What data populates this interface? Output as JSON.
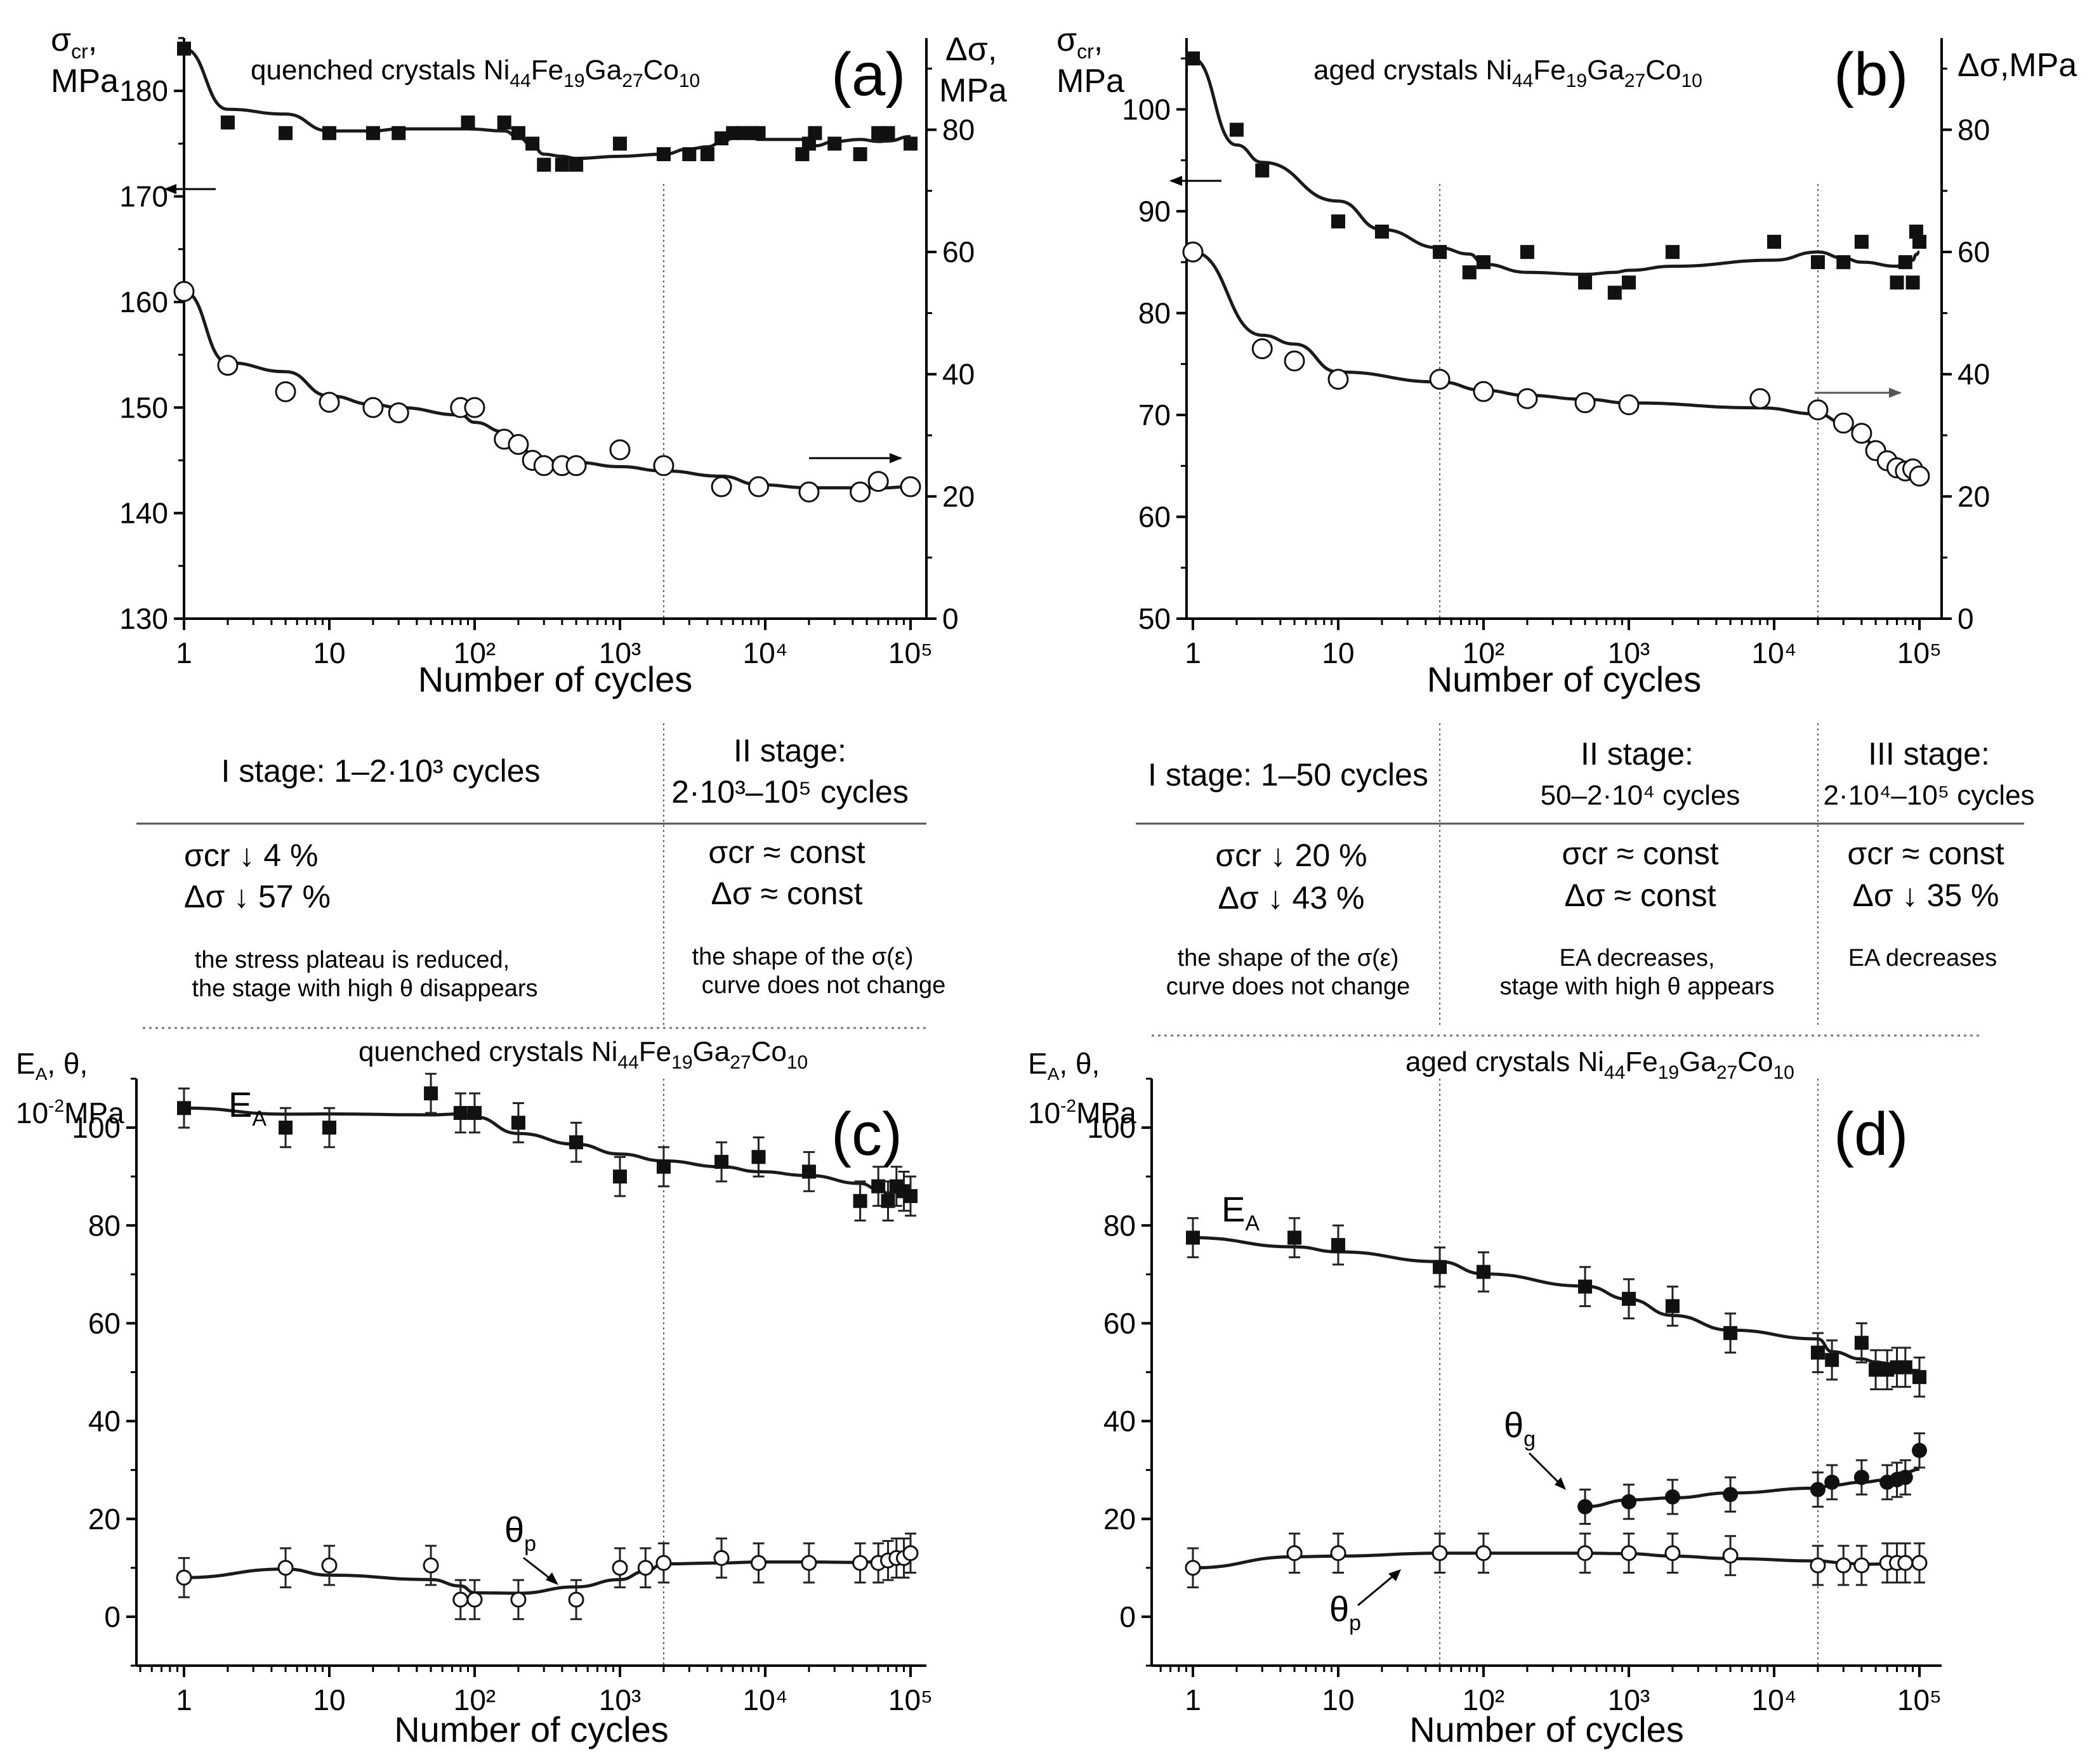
{
  "chart_data": [
    {
      "panel": "a",
      "type": "scatter",
      "title": "quenched crystals Ni44Fe19Ga27Co10",
      "letter": "(a)",
      "xlabel": "Number of cycles",
      "xscale": "log",
      "xlim": [
        1,
        100000
      ],
      "ylabel_left": "σcr, MPa",
      "ylabel_right": "Δσ, MPa",
      "ylim_left": [
        130,
        185
      ],
      "ylim_right": [
        0,
        95
      ],
      "yticks_left": [
        130,
        140,
        150,
        160,
        170,
        180
      ],
      "yticks_right": [
        0,
        20,
        40,
        60,
        80
      ],
      "grid": false,
      "series": [
        {
          "marker": "filled-square",
          "axis": "left",
          "x": [
            1,
            2,
            5,
            10,
            20,
            30,
            90,
            160,
            200,
            250,
            300,
            400,
            500,
            1000,
            2000,
            3000,
            4000,
            5000,
            6000,
            7000,
            8000,
            9000,
            18000,
            20000,
            22000,
            30000,
            45000,
            60000,
            70000,
            100000
          ],
          "y": [
            184,
            177,
            176,
            176,
            176,
            176,
            177,
            177,
            176,
            175,
            173,
            173,
            173,
            175,
            174,
            174,
            174,
            175.5,
            176,
            176,
            176,
            176,
            174,
            175,
            176,
            175,
            174,
            176,
            176,
            175
          ]
        },
        {
          "marker": "open-circle",
          "axis": "left",
          "x": [
            1,
            2,
            5,
            10,
            20,
            30,
            80,
            100,
            160,
            200,
            250,
            300,
            400,
            500,
            1000,
            2000,
            5000,
            9000,
            20000,
            45000,
            60000,
            100000
          ],
          "y": [
            161,
            154,
            151.5,
            150.5,
            150,
            149.5,
            150,
            150,
            147,
            146.5,
            145,
            144.5,
            144.5,
            144.5,
            146,
            144.5,
            142.5,
            142.5,
            142,
            142,
            143,
            142.5
          ]
        }
      ],
      "arrows": [
        "left",
        "right"
      ],
      "dotted_vline_x": 2000
    },
    {
      "panel": "b",
      "type": "scatter",
      "title": "aged crystals Ni44Fe19Ga27Co10",
      "letter": "(b)",
      "xlabel": "Number of cycles",
      "xscale": "log",
      "xlim": [
        1,
        100000
      ],
      "ylabel_left": "σcr, MPa",
      "ylabel_right": "Δσ,MPa",
      "ylim_left": [
        50,
        107
      ],
      "ylim_right": [
        0,
        95
      ],
      "yticks_left": [
        50,
        60,
        70,
        80,
        90,
        100
      ],
      "yticks_right": [
        0,
        20,
        40,
        60,
        80
      ],
      "grid": false,
      "series": [
        {
          "marker": "filled-square",
          "axis": "left",
          "x": [
            1,
            2,
            3,
            10,
            20,
            50,
            80,
            100,
            200,
            500,
            800,
            1000,
            2000,
            10000,
            20000,
            30000,
            40000,
            70000,
            80000,
            90000,
            95000,
            100000
          ],
          "y": [
            105,
            98,
            94,
            89,
            88,
            86,
            84,
            85,
            86,
            83,
            82,
            83,
            86,
            87,
            85,
            85,
            87,
            83,
            85,
            83,
            88,
            87
          ]
        },
        {
          "marker": "open-circle",
          "axis": "left",
          "x": [
            1,
            3,
            5,
            10,
            50,
            100,
            200,
            500,
            1000,
            8000,
            20000,
            30000,
            40000,
            50000,
            60000,
            70000,
            80000,
            90000,
            100000
          ],
          "y": [
            86,
            76.5,
            75.3,
            73.5,
            73.5,
            72.3,
            71.6,
            71.2,
            71,
            71.6,
            70.5,
            69.2,
            68.2,
            66.5,
            65.5,
            64.8,
            64.5,
            64.7,
            64
          ]
        }
      ],
      "arrows": [
        "left",
        "right"
      ],
      "dotted_vlines_x": [
        50,
        20000
      ]
    },
    {
      "panel": "c",
      "type": "scatter",
      "title": "quenched crystals Ni44Fe19Ga27Co10",
      "letter": "(c)",
      "xlabel": "Number of cycles",
      "xscale": "log",
      "xlim": [
        1,
        100000
      ],
      "ylabel": "EA, θ, 10⁻²MPa",
      "ylim": [
        -10,
        110
      ],
      "yticks": [
        0,
        20,
        40,
        60,
        80,
        100
      ],
      "grid": false,
      "series": [
        {
          "label": "EA",
          "marker": "filled-square",
          "error": 4,
          "x": [
            1,
            5,
            10,
            50,
            80,
            100,
            200,
            500,
            1000,
            2000,
            5000,
            9000,
            20000,
            45000,
            60000,
            70000,
            80000,
            90000,
            100000
          ],
          "y": [
            104,
            100,
            100,
            107,
            103,
            103,
            101,
            97,
            90,
            92,
            93,
            94,
            91,
            85,
            88,
            85,
            88,
            87,
            86
          ]
        },
        {
          "label": "θp",
          "marker": "open-circle",
          "error": 4,
          "x": [
            1,
            5,
            10,
            50,
            80,
            100,
            200,
            500,
            1000,
            1500,
            2000,
            5000,
            9000,
            20000,
            45000,
            60000,
            70000,
            80000,
            90000,
            100000
          ],
          "y": [
            8,
            10,
            10.5,
            10.5,
            3.5,
            3.5,
            3.5,
            3.5,
            10,
            10,
            11,
            12,
            11,
            11,
            11,
            11,
            11.5,
            12,
            12,
            13
          ]
        }
      ],
      "annotations": [
        "EA",
        "θp"
      ],
      "dotted_vline_x": 2000
    },
    {
      "panel": "d",
      "type": "scatter",
      "title": "aged crystals Ni44Fe19Ga27Co10",
      "letter": "(d)",
      "xlabel": "Number of cycles",
      "xscale": "log",
      "xlim": [
        1,
        100000
      ],
      "ylabel": "EA, θ, 10⁻²MPa",
      "ylim": [
        -10,
        110
      ],
      "yticks": [
        0,
        20,
        40,
        60,
        80,
        100
      ],
      "grid": false,
      "series": [
        {
          "label": "EA",
          "marker": "filled-square",
          "error": 4,
          "x": [
            1,
            5,
            10,
            50,
            100,
            500,
            1000,
            2000,
            5000,
            20000,
            25000,
            40000,
            50000,
            60000,
            70000,
            80000,
            100000
          ],
          "y": [
            77.5,
            77.5,
            76,
            71.5,
            70.5,
            67.5,
            65,
            63.5,
            58,
            54,
            52.5,
            56,
            50.5,
            50.5,
            51,
            51,
            49
          ]
        },
        {
          "label": "θg",
          "marker": "filled-circle",
          "error": 3.5,
          "x": [
            500,
            1000,
            2000,
            5000,
            20000,
            25000,
            40000,
            60000,
            70000,
            80000,
            100000
          ],
          "y": [
            22.5,
            23.5,
            24.5,
            25,
            26,
            27.5,
            28.5,
            27.5,
            28,
            28.5,
            34
          ]
        },
        {
          "label": "θp",
          "marker": "open-circle",
          "error": 4,
          "x": [
            1,
            5,
            10,
            50,
            100,
            500,
            1000,
            2000,
            5000,
            20000,
            30000,
            40000,
            60000,
            70000,
            80000,
            100000
          ],
          "y": [
            10,
            13,
            13,
            13,
            13,
            13,
            13,
            13,
            12.5,
            10.5,
            10.5,
            10.5,
            11,
            11,
            11,
            11
          ]
        }
      ],
      "annotations": [
        "EA",
        "θg",
        "θp"
      ],
      "dotted_vlines_x": [
        50,
        20000
      ]
    }
  ],
  "stages_left": {
    "stage1": {
      "head": "I stage: 1–2·10³ cycles",
      "line1": "σcr ↓ 4 %",
      "line2": "Δσ ↓ 57 %",
      "note1": "the stress plateau is reduced,",
      "note2": "the stage with high θ disappears"
    },
    "stage2": {
      "head1": "II stage:",
      "head2": "2·10³–10⁵ cycles",
      "line1": "σcr ≈ const",
      "line2": "Δσ ≈ const",
      "note1": "the shape of the σ(ε)",
      "note2": "curve does not change"
    }
  },
  "stages_right": {
    "stage1": {
      "head": "I stage: 1–50 cycles",
      "line1": "σcr ↓ 20 %",
      "line2": "Δσ ↓ 43 %",
      "note1": "the shape of the σ(ε)",
      "note2": "curve does not change"
    },
    "stage2": {
      "head1": "II stage:",
      "head2": "50–2·10⁴ cycles",
      "line1": "σcr ≈ const",
      "line2": "Δσ ≈ const",
      "note1": "EA decreases,",
      "note2": "stage with high θ appears"
    },
    "stage3": {
      "head1": "III stage:",
      "head2": "2·10⁴–10⁵ cycles",
      "line1": "σcr ≈ const",
      "line2": "Δσ ↓ 35 %",
      "note1": "EA decreases"
    }
  },
  "x_tick_labels": [
    "1",
    "10",
    "10²",
    "10³",
    "10⁴",
    "10⁵"
  ]
}
